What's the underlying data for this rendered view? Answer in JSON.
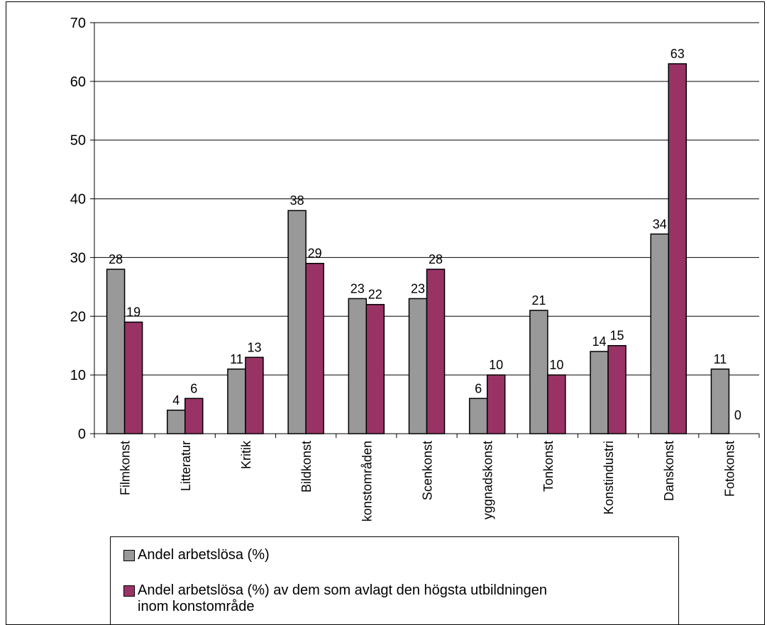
{
  "chart_data": {
    "type": "bar",
    "title": "",
    "xlabel": "",
    "ylabel": "",
    "ylim": [
      0,
      70
    ],
    "yticks": [
      0,
      10,
      20,
      30,
      40,
      50,
      60,
      70
    ],
    "grid": true,
    "legend_position": "bottom",
    "categories": [
      "Filmkonst",
      "Litteratur",
      "Kritik",
      "Bildkonst",
      "konstområden",
      "Scenkonst",
      "yggnadskonst",
      "Tonkonst",
      "Konstindustri",
      "Danskonst",
      "Fotokonst"
    ],
    "series": [
      {
        "name": "Andel arbetslösa (%)",
        "color": "#999999",
        "values": [
          28,
          4,
          11,
          38,
          23,
          23,
          6,
          21,
          14,
          34,
          11
        ]
      },
      {
        "name": "Andel arbetslösa (%) av dem som avlagt den högsta utbildningen inom konstområde",
        "color": "#993366",
        "values": [
          19,
          6,
          13,
          29,
          22,
          28,
          10,
          10,
          15,
          63,
          0
        ]
      }
    ]
  }
}
